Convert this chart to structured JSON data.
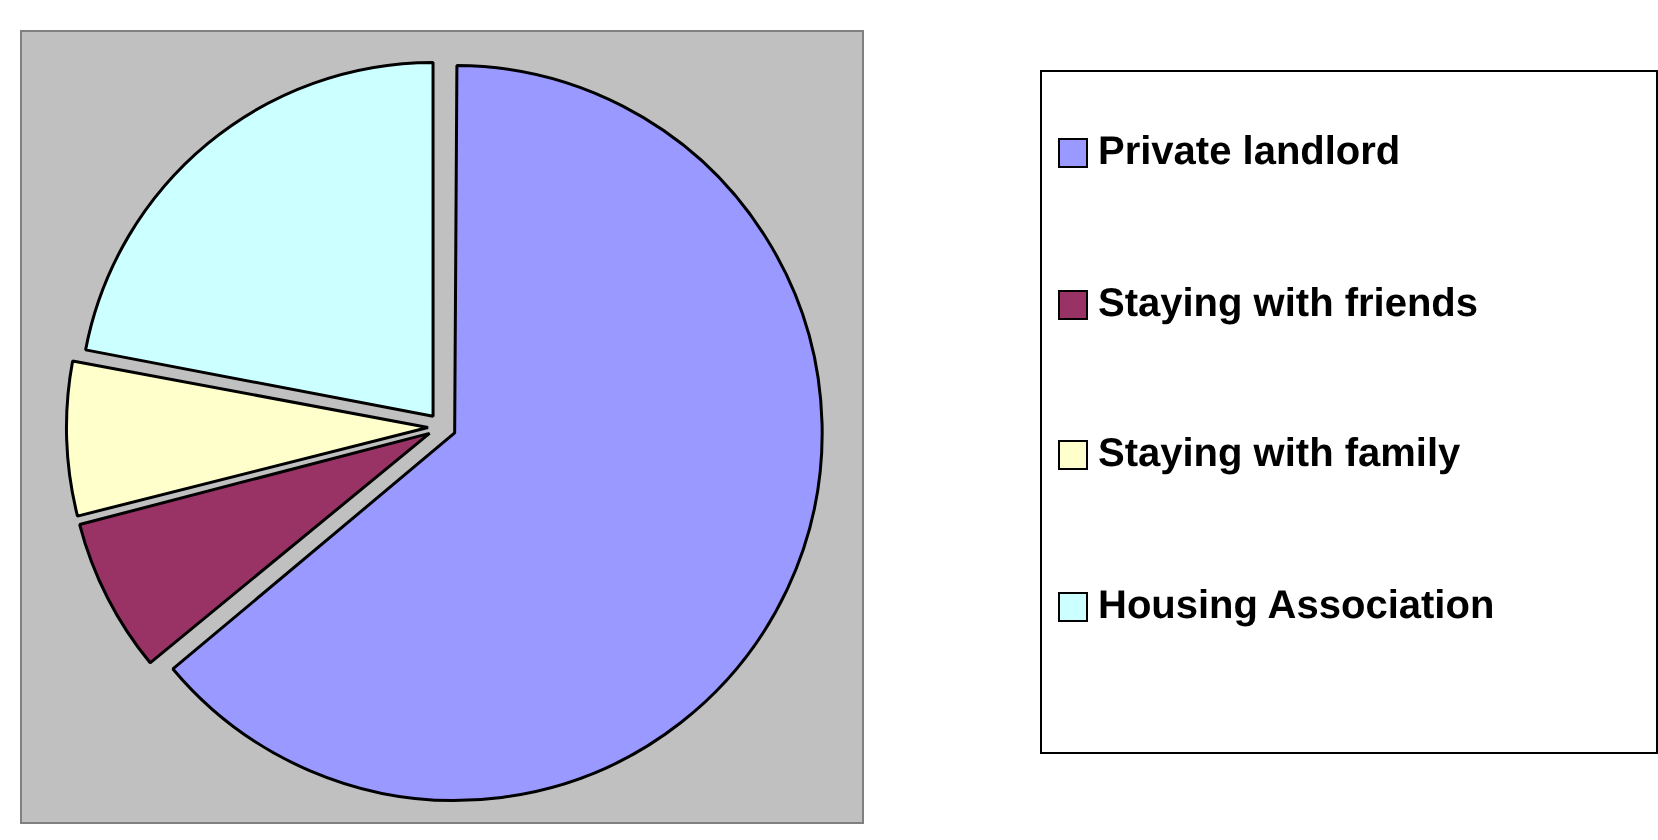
{
  "chart_data": {
    "type": "pie",
    "categories": [
      "Private landlord",
      "Staying with friends",
      "Staying with family",
      "Housing Association"
    ],
    "values": [
      64,
      7,
      7,
      22
    ],
    "colors": [
      "#9999ff",
      "#993366",
      "#ffffcc",
      "#ccffff"
    ],
    "legend": "right"
  }
}
